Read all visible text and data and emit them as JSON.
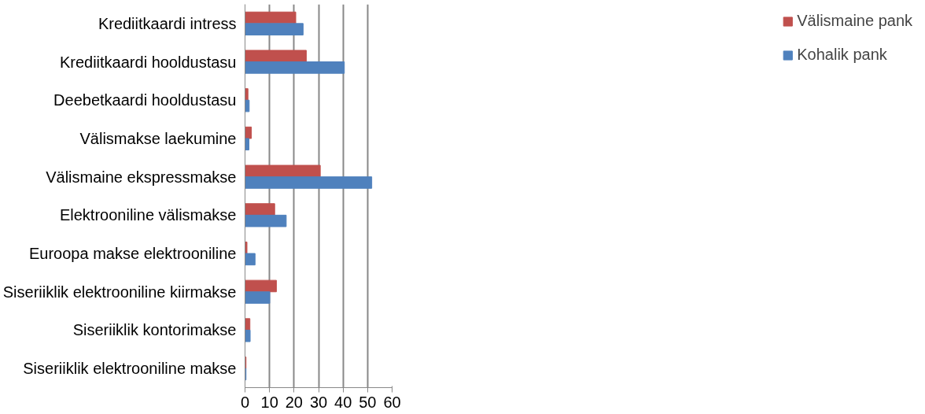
{
  "chart_data": {
    "type": "bar",
    "orientation": "horizontal",
    "categories": [
      "Krediitkaardi intress",
      "Krediitkaardi hooldustasu",
      "Deebetkaardi hooldustasu",
      "Välismakse laekumine",
      "Välismaine ekspressmakse",
      "Elektrooniline välismakse",
      "Euroopa makse elektrooniline",
      "Siseriiklik elektrooniline kiirmakse",
      "Siseriiklik kontorimakse",
      "Siseriiklik elektrooniline makse"
    ],
    "series": [
      {
        "name": "Välismaine pank",
        "color": "#c0504d",
        "values": [
          20.7,
          25.0,
          1.2,
          2.6,
          30.7,
          12.1,
          0.8,
          12.8,
          2.0,
          0.4
        ]
      },
      {
        "name": "Kohalik pank",
        "color": "#4f81bd",
        "values": [
          23.7,
          40.5,
          1.7,
          1.6,
          51.7,
          16.8,
          4.1,
          10.1,
          2.1,
          0.4
        ]
      }
    ],
    "xlim": [
      0,
      60
    ],
    "xticks": [
      0,
      10,
      20,
      30,
      40,
      50,
      60
    ],
    "grid": "x",
    "legend": "right"
  }
}
